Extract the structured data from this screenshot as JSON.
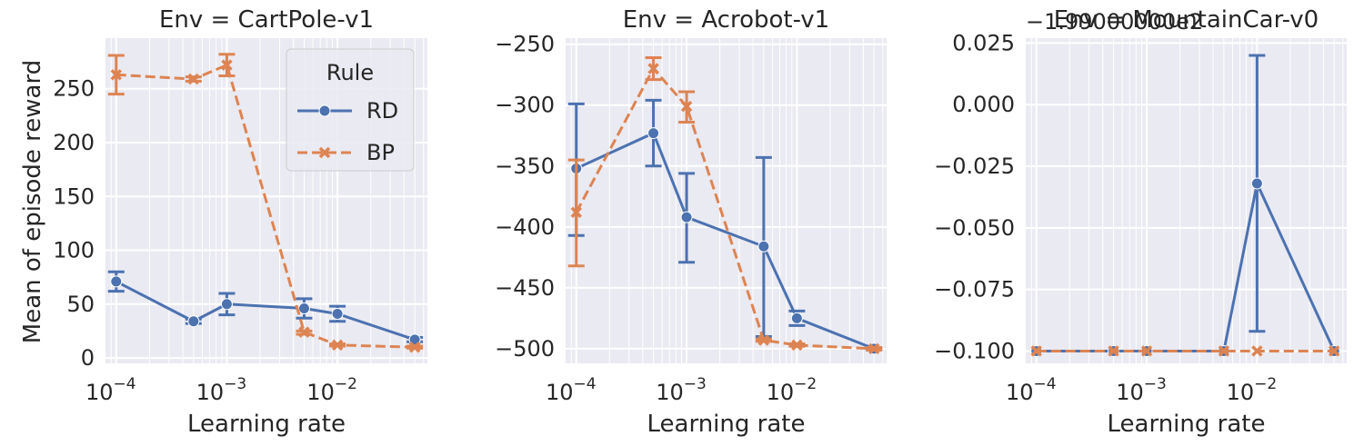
{
  "figure": {
    "ylabel": "Mean of episode reward",
    "xlabel": "Learning rate"
  },
  "legend": {
    "title": "Rule",
    "entries": [
      {
        "name": "RD",
        "color": "#4c72b0",
        "marker": "circle",
        "linestyle": "solid"
      },
      {
        "name": "BP",
        "color": "#dd8452",
        "marker": "x",
        "linestyle": "dashed"
      }
    ],
    "placement": "upper-right of first panel"
  },
  "chart_data": [
    {
      "type": "line",
      "title": "Env = CartPole-v1",
      "x_scale": "log",
      "x": [
        0.0001,
        0.0005,
        0.001,
        0.005,
        0.01,
        0.05
      ],
      "xlim": [
        8e-05,
        0.065
      ],
      "x_ticks": [
        {
          "value": 0.0001,
          "label": "10",
          "exp": "−4"
        },
        {
          "value": 0.001,
          "label": "10",
          "exp": "−3"
        },
        {
          "value": 0.01,
          "label": "10",
          "exp": "−2"
        }
      ],
      "ylim": [
        -5,
        297
      ],
      "y_ticks": [
        "0",
        "50",
        "100",
        "150",
        "200",
        "250"
      ],
      "y_tick_values": [
        0,
        50,
        100,
        150,
        200,
        250
      ],
      "offset_text": "",
      "series": [
        {
          "name": "RD",
          "values": [
            71,
            34,
            50,
            46,
            41,
            17
          ],
          "err_low": [
            62,
            32,
            40,
            37,
            34,
            15
          ],
          "err_high": [
            80,
            36,
            60,
            55,
            48,
            19
          ]
        },
        {
          "name": "BP",
          "values": [
            263,
            259,
            272,
            24,
            12,
            10
          ],
          "err_low": [
            245,
            257,
            262,
            22,
            11,
            9
          ],
          "err_high": [
            281,
            261,
            282,
            25,
            13,
            11
          ]
        }
      ],
      "grid": true
    },
    {
      "type": "line",
      "title": "Env = Acrobot-v1",
      "x_scale": "log",
      "x": [
        0.0001,
        0.0005,
        0.001,
        0.005,
        0.01,
        0.05
      ],
      "xlim": [
        8e-05,
        0.065
      ],
      "x_ticks": [
        {
          "value": 0.0001,
          "label": "10",
          "exp": "−4"
        },
        {
          "value": 0.001,
          "label": "10",
          "exp": "−3"
        },
        {
          "value": 0.01,
          "label": "10",
          "exp": "−2"
        }
      ],
      "ylim": [
        -512,
        -245
      ],
      "y_ticks": [
        "−250",
        "−300",
        "−350",
        "−400",
        "−450",
        "−500"
      ],
      "y_tick_values": [
        -250,
        -300,
        -350,
        -400,
        -450,
        -500
      ],
      "offset_text": "",
      "series": [
        {
          "name": "RD",
          "values": [
            -352,
            -323,
            -392,
            -416,
            -475,
            -500
          ],
          "err_low": [
            -407,
            -350,
            -429,
            -490,
            -481,
            -501
          ],
          "err_high": [
            -299,
            -296,
            -356,
            -343,
            -469,
            -499
          ]
        },
        {
          "name": "BP",
          "values": [
            -388,
            -270,
            -301,
            -493,
            -497,
            -500
          ],
          "err_low": [
            -432,
            -279,
            -314,
            -494,
            -498,
            -501
          ],
          "err_high": [
            -345,
            -261,
            -289,
            -492,
            -496,
            -499
          ]
        }
      ],
      "grid": true
    },
    {
      "type": "line",
      "title": "Env = MountainCar-v0",
      "x_scale": "log",
      "x": [
        0.0001,
        0.0005,
        0.001,
        0.005,
        0.01,
        0.05
      ],
      "xlim": [
        8e-05,
        0.065
      ],
      "x_ticks": [
        {
          "value": 0.0001,
          "label": "10",
          "exp": "−4"
        },
        {
          "value": 0.001,
          "label": "10",
          "exp": "−3"
        },
        {
          "value": 0.01,
          "label": "10",
          "exp": "−2"
        }
      ],
      "ylim": [
        -0.105,
        0.027
      ],
      "y_ticks": [
        "0.025",
        "0.000",
        "−0.025",
        "−0.050",
        "−0.075",
        "−0.100"
      ],
      "y_tick_values": [
        0.025,
        0,
        -0.025,
        -0.05,
        -0.075,
        -0.1
      ],
      "offset_text": "−1.99000000e2",
      "series": [
        {
          "name": "RD",
          "values": [
            -0.1,
            -0.1,
            -0.1,
            -0.1,
            -0.032,
            -0.1
          ],
          "err_low": [
            null,
            null,
            null,
            null,
            -0.092,
            null
          ],
          "err_high": [
            null,
            null,
            null,
            null,
            0.02,
            null
          ]
        },
        {
          "name": "BP",
          "values": [
            -0.1,
            -0.1,
            -0.1,
            -0.1,
            -0.1,
            -0.1
          ],
          "err_low": [
            null,
            null,
            null,
            null,
            null,
            null
          ],
          "err_high": [
            null,
            null,
            null,
            null,
            null,
            null
          ]
        }
      ],
      "grid": true
    }
  ]
}
